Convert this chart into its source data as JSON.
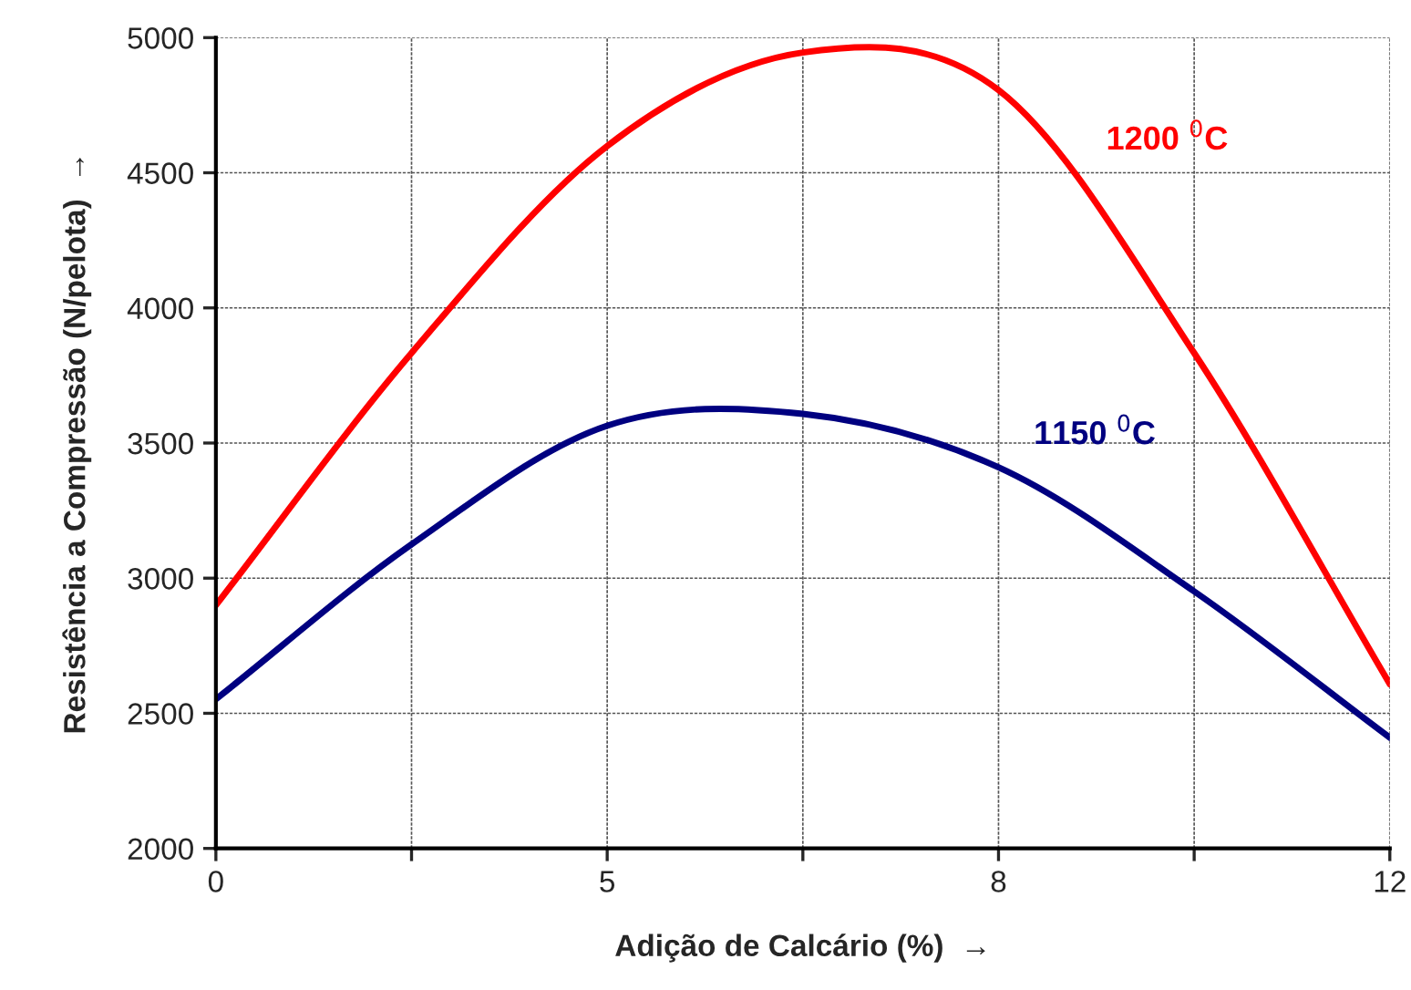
{
  "chart_data": {
    "type": "line",
    "xlabel": "Adição de Calcário (%)  →",
    "ylabel": "Resistência a Compressão (N/pelota)  →",
    "categories": [
      "0",
      null,
      "5",
      null,
      "8",
      null,
      "12"
    ],
    "ylim": [
      2000,
      5000
    ],
    "yticks": [
      2000,
      2500,
      3000,
      3500,
      4000,
      4500,
      5000
    ],
    "grid": true,
    "line_style": "solid",
    "series": [
      {
        "name": "1200 $^{0}$C",
        "color": "#ff0000",
        "values": [
          2900,
          3833,
          4599,
          4945,
          4806,
          3833,
          2608
        ]
      },
      {
        "name": "1150 $^{0}$C",
        "color": "#000080",
        "values": [
          2552,
          3125,
          3564,
          3608,
          3410,
          2951,
          2410
        ]
      }
    ]
  }
}
